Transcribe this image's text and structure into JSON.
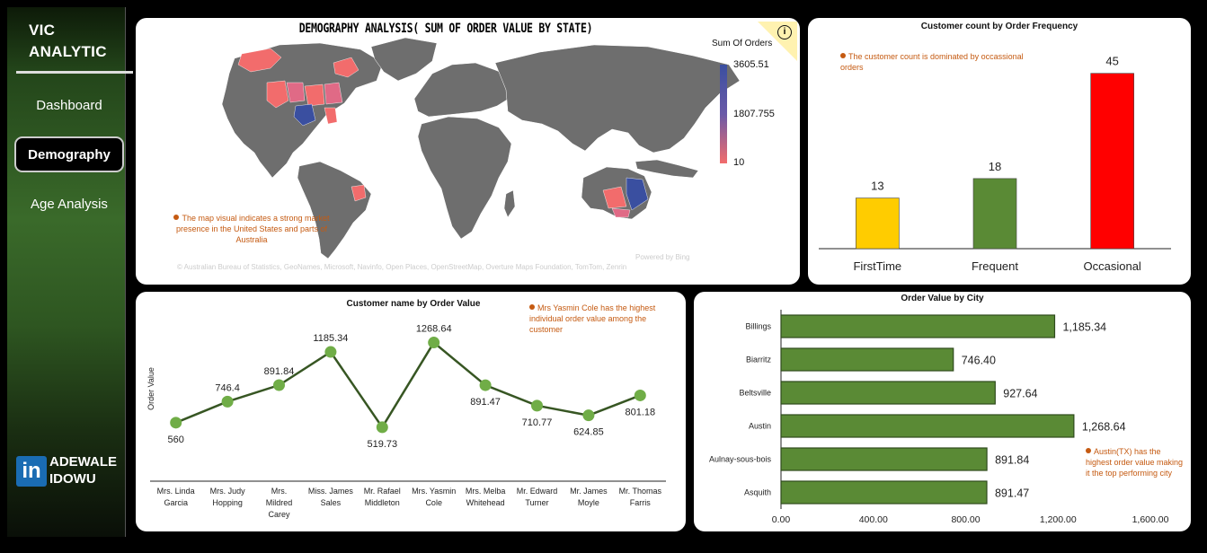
{
  "sidebar": {
    "brand_line1": "VIC",
    "brand_line2": "ANALYTIC",
    "nav": [
      {
        "label": "Dashboard",
        "active": false
      },
      {
        "label": "Demography",
        "active": true
      },
      {
        "label": "Age Analysis",
        "active": false
      }
    ],
    "linkedin_glyph": "in",
    "author_line1": "ADEWALE",
    "author_line2": "IDOWU"
  },
  "map_card": {
    "title": "DEMOGRAPHY ANALYSIS( SUM OF ORDER VALUE  BY STATE)",
    "legend_title": "Sum Of Orders",
    "legend_max": "3605.51",
    "legend_mid": "1807.755",
    "legend_min": "10",
    "info_glyph": "i",
    "note": "The map visual indicates a strong market presence in the United States and parts of Australia",
    "powered": "Powered by Bing",
    "attribution": "© Australian Bureau of Statistics, GeoNames, Microsoft, Navinfo, Open Places, OpenStreetMap, Overture Maps Foundation, TomTom, Zenrin",
    "colors": {
      "land": "#6e6e6e",
      "low": "#f26c6c",
      "high": "#3a4fa0"
    }
  },
  "frequency_card": {
    "title": "Customer count by  Order Frequency",
    "note": "The customer count is dominated by occassional orders",
    "chart_data": {
      "type": "bar",
      "categories": [
        "FirstTime",
        "Frequent",
        "Occasional"
      ],
      "values": [
        13,
        18,
        45
      ],
      "labels": [
        "13",
        "18",
        "45"
      ],
      "colors": [
        "#ffcc00",
        "#5a8a35",
        "#ff0000"
      ],
      "ylim": [
        0,
        50
      ]
    }
  },
  "customer_card": {
    "title": "Customer name by  Order Value",
    "note": "Mrs Yasmin Cole has the highest individual order value among the customer",
    "chart_data": {
      "type": "line",
      "ylabel": "Order Value",
      "categories": [
        "Mrs. Linda Garcia",
        "Mrs. Judy Hopping",
        "Mrs. Mildred Carey",
        "Miss. James Sales",
        "Mr. Rafael Middleton",
        "Mrs. Yasmin Cole",
        "Mrs. Melba Whitehead",
        "Mr. Edward Turner",
        "Mr. James Moyle",
        "Mr. Thomas Farris"
      ],
      "values": [
        560,
        746.4,
        891.84,
        1185.34,
        519.73,
        1268.64,
        891.47,
        710.77,
        624.85,
        801.18
      ],
      "labels": [
        "560",
        "746.4",
        "891.84",
        "1185.34",
        "519.73",
        "1268.64",
        "891.47",
        "710.77",
        "624.85",
        "801.18"
      ],
      "label_pos": [
        "below",
        "above",
        "above",
        "above",
        "below",
        "above",
        "below",
        "below",
        "below",
        "below"
      ],
      "ylim": [
        400,
        1400
      ]
    }
  },
  "city_card": {
    "title": "Order Value  by City",
    "note": "Austin(TX) has the highest order value making it the top performing city",
    "chart_data": {
      "type": "bar",
      "orientation": "horizontal",
      "categories": [
        "Billings",
        "Biarritz",
        "Beltsville",
        "Austin",
        "Aulnay-sous-bois",
        "Asquith"
      ],
      "values": [
        1185.34,
        746.4,
        927.64,
        1268.64,
        891.84,
        891.47
      ],
      "labels": [
        "1,185.34",
        "746.40",
        "927.64",
        "1,268.64",
        "891.84",
        "891.47"
      ],
      "xlim": [
        0,
        1600
      ],
      "xticks": [
        0,
        400,
        800,
        1200,
        1600
      ],
      "xtick_labels": [
        "0.00",
        "400.00",
        "800.00",
        "1,200.00",
        "1,600.00"
      ],
      "color": "#5a8a35"
    }
  }
}
